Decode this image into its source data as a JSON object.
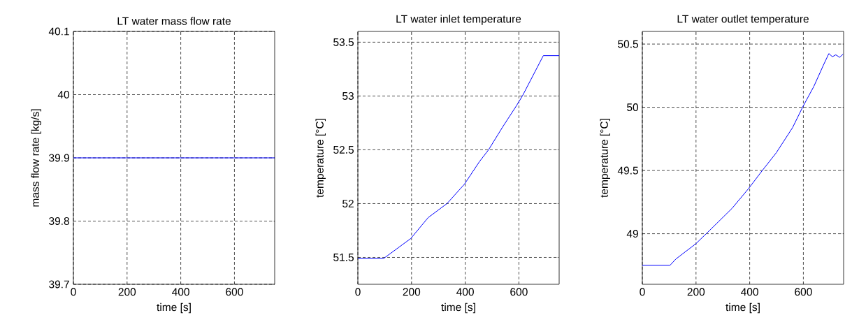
{
  "chart_data": [
    {
      "type": "line",
      "title": "LT water mass flow rate",
      "xlabel": "time [s]",
      "ylabel": "mass flow rate [kg/s]",
      "x": [
        0,
        750
      ],
      "values": [
        39.9,
        39.9
      ],
      "color": "#0000ff",
      "xlim": [
        0,
        750
      ],
      "ylim": [
        39.7,
        40.1
      ],
      "xticks": [
        0,
        200,
        400,
        600
      ],
      "yticks": [
        39.7,
        39.8,
        39.9,
        40,
        40.1
      ],
      "grid": true
    },
    {
      "type": "line",
      "title": "LT water inlet temperature",
      "xlabel": "time [s]",
      "ylabel": "temperature [°C]",
      "x": [
        0,
        96,
        197,
        262,
        332,
        397,
        453,
        487,
        539,
        591,
        613,
        691,
        750
      ],
      "values": [
        51.49,
        51.49,
        51.675,
        51.87,
        52.0,
        52.18,
        52.39,
        52.5,
        52.71,
        52.91,
        53.0,
        53.375,
        53.375
      ],
      "color": "#0000ff",
      "xlim": [
        0,
        750
      ],
      "ylim": [
        51.25,
        53.6
      ],
      "xticks": [
        0,
        200,
        400,
        600
      ],
      "yticks": [
        51.5,
        52,
        52.5,
        53,
        53.5
      ],
      "grid": true
    },
    {
      "type": "line",
      "title": "LT water outlet temperature",
      "xlabel": "time [s]",
      "ylabel": "temperature [°C]",
      "x": [
        0,
        103,
        125,
        199,
        238,
        334,
        395,
        447,
        499,
        560,
        597,
        639,
        674,
        695,
        708,
        721,
        735,
        748
      ],
      "values": [
        48.75,
        48.75,
        48.8,
        48.92,
        49.0,
        49.2,
        49.355,
        49.5,
        49.64,
        49.84,
        50.0,
        50.165,
        50.33,
        50.425,
        50.4,
        50.415,
        50.395,
        50.42
      ],
      "color": "#0000ff",
      "xlim": [
        0,
        750
      ],
      "ylim": [
        48.6,
        50.6
      ],
      "xticks": [
        0,
        200,
        400,
        600
      ],
      "yticks": [
        49,
        49.5,
        50,
        50.5
      ],
      "grid": true
    }
  ]
}
